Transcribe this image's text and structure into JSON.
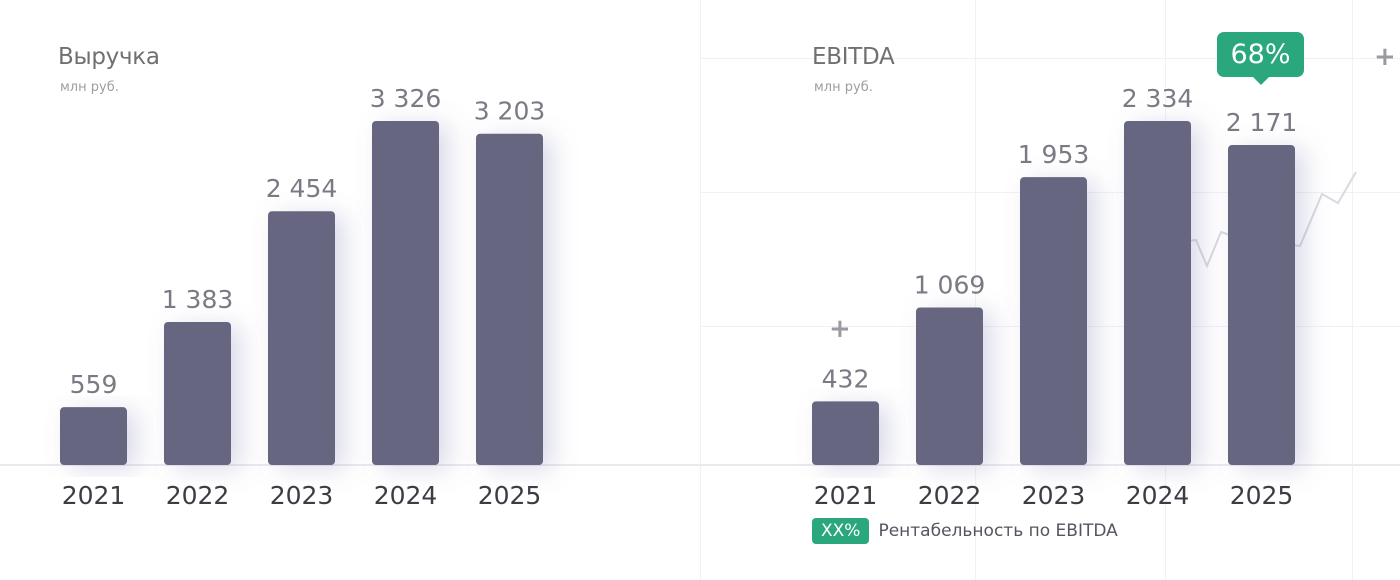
{
  "chart_data": [
    {
      "type": "bar",
      "title": "Выручка",
      "subtitle": "млн руб.",
      "categories": [
        "2021",
        "2022",
        "2023",
        "2024",
        "2025"
      ],
      "values": [
        559,
        1383,
        2454,
        3326,
        3203
      ],
      "value_labels": [
        "559",
        "1 383",
        "2 454",
        "3 326",
        "3 203"
      ],
      "ylim": [
        0,
        3326
      ],
      "grid": false,
      "bar_color": "#666680"
    },
    {
      "type": "bar",
      "title": "EBITDA",
      "subtitle": "млн руб.",
      "categories": [
        "2021",
        "2022",
        "2023",
        "2024",
        "2025"
      ],
      "values": [
        432,
        1069,
        1953,
        2334,
        2171
      ],
      "value_labels": [
        "432",
        "1 069",
        "1 953",
        "2 334",
        "2 171"
      ],
      "ylim": [
        0,
        2334
      ],
      "grid": false,
      "bar_color": "#666680",
      "annotation": {
        "category": "2025",
        "text": "68%"
      },
      "legend": {
        "badge": "XX%",
        "text": "Рентабельность по EBITDA",
        "position": "bottom-left"
      }
    }
  ],
  "colors": {
    "bar": "#666680",
    "badge": "#2aa77d"
  }
}
